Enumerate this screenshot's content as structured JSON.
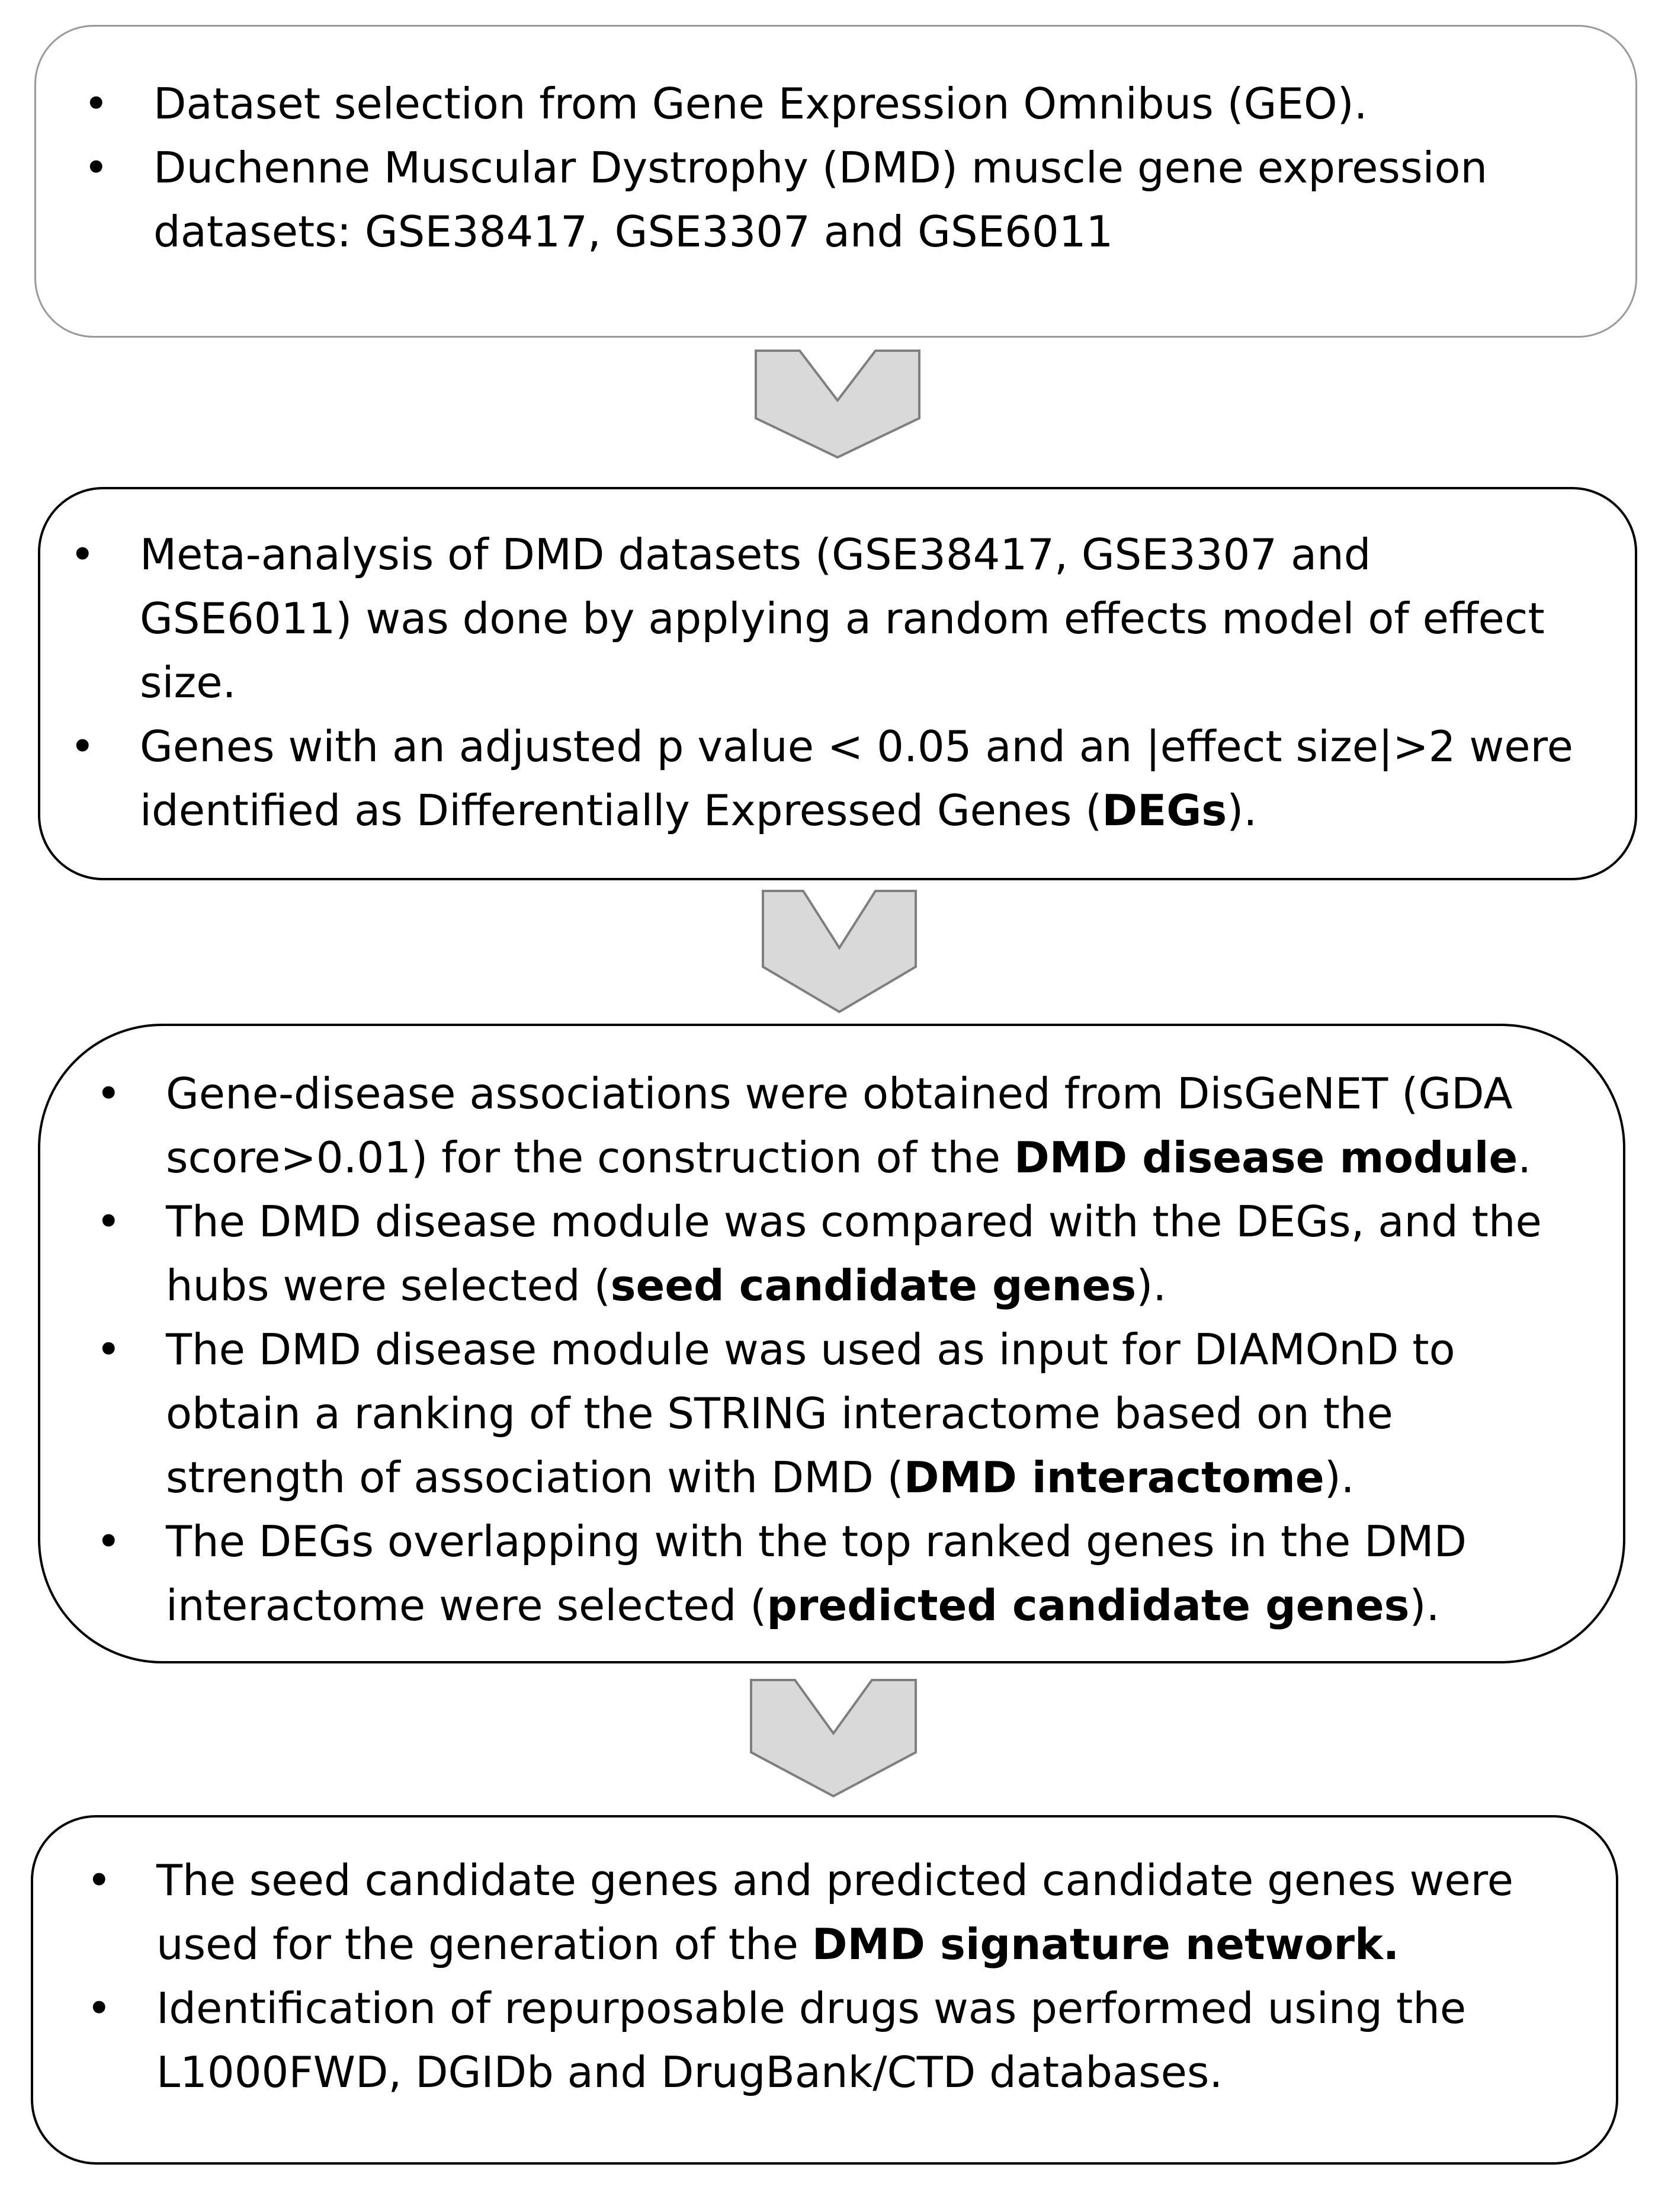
{
  "colors": {
    "arrow_fill": "#d9d9d9",
    "arrow_stroke": "#7f7f7f",
    "border": "#000000",
    "box1_border": "#9a9a9a"
  },
  "arrows": [
    "chevron-down-icon",
    "chevron-down-icon",
    "chevron-down-icon"
  ],
  "steps": [
    {
      "bullets": [
        {
          "lines": [
            [
              {
                "t": "Dataset selection from Gene Expression Omnibus (GEO)."
              }
            ]
          ]
        },
        {
          "lines": [
            [
              {
                "t": "Duchenne Muscular Dystrophy (DMD) muscle gene expression"
              }
            ],
            [
              {
                "t": "datasets: GSE38417, GSE3307 and GSE6011"
              }
            ]
          ]
        }
      ]
    },
    {
      "bullets": [
        {
          "lines": [
            [
              {
                "t": "Meta-analysis of DMD datasets (GSE38417, GSE3307 and"
              }
            ],
            [
              {
                "t": "GSE6011) was done by applying a random effects model of effect"
              }
            ],
            [
              {
                "t": "size."
              }
            ]
          ]
        },
        {
          "lines": [
            [
              {
                "t": "Genes with an adjusted p value < 0.05 and an |effect size|>2 were"
              }
            ],
            [
              {
                "t": "identified as Differentially Expressed Genes ("
              },
              {
                "t": "DEGs",
                "b": true
              },
              {
                "t": ")."
              }
            ]
          ]
        }
      ]
    },
    {
      "bullets": [
        {
          "lines": [
            [
              {
                "t": "Gene-disease associations were obtained from DisGeNET  (GDA"
              }
            ],
            [
              {
                "t": "score>0.01) for the construction of the "
              },
              {
                "t": "DMD disease module",
                "b": true
              },
              {
                "t": "."
              }
            ]
          ]
        },
        {
          "lines": [
            [
              {
                "t": "The DMD disease  module was compared with the DEGs, and the"
              }
            ],
            [
              {
                "t": "hubs were selected ("
              },
              {
                "t": "seed candidate genes",
                "b": true
              },
              {
                "t": ")."
              }
            ]
          ]
        },
        {
          "lines": [
            [
              {
                "t": "The DMD disease module was  used as input for DIAMOnD to"
              }
            ],
            [
              {
                "t": "obtain a ranking of the STRING interactome based on the"
              }
            ],
            [
              {
                "t": "strength of association with DMD ("
              },
              {
                "t": "DMD interactome",
                "b": true
              },
              {
                "t": ")."
              }
            ]
          ]
        },
        {
          "lines": [
            [
              {
                "t": "The DEGs overlapping with the top ranked genes in  the  DMD"
              }
            ],
            [
              {
                "t": "interactome  were selected ("
              },
              {
                "t": "predicted candidate  genes",
                "b": true
              },
              {
                "t": ")."
              }
            ]
          ]
        }
      ]
    },
    {
      "bullets": [
        {
          "lines": [
            [
              {
                "t": "The seed  candidate genes and  predicted candidate genes were"
              }
            ],
            [
              {
                "t": "used for the generation of the  "
              },
              {
                "t": "DMD signature network.",
                "b": true
              }
            ]
          ]
        },
        {
          "lines": [
            [
              {
                "t": "Identification of repurposable drugs was performed using  the"
              }
            ],
            [
              {
                "t": "L1000FWD, DGIDb and DrugBank/CTD databases."
              }
            ]
          ]
        }
      ]
    }
  ]
}
